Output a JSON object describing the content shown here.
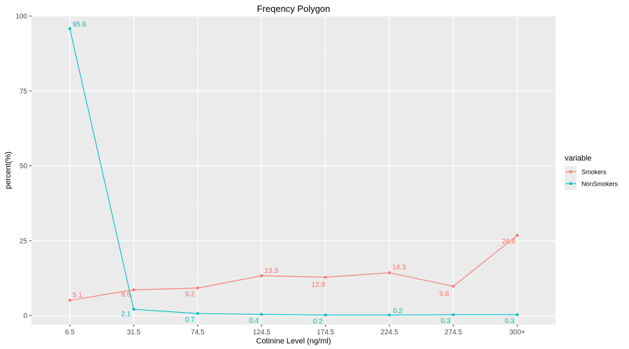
{
  "colors": {
    "panel_bg": "#EBEBEB",
    "grid_major": "#FFFFFF",
    "smokers": "#F8766D",
    "nonsmokers": "#00BFC4"
  },
  "chart_data": {
    "type": "line",
    "title": "Freqency Polygon",
    "xlabel": "Cotinine Level (ng/ml)",
    "ylabel": "percent(%)",
    "categories": [
      "6.5",
      "31.5",
      "74.5",
      "124.5",
      "174.5",
      "224.5",
      "274.5",
      "300+"
    ],
    "ylim": [
      -3,
      100
    ],
    "yticks": [
      0,
      25,
      50,
      75,
      100
    ],
    "grid": true,
    "legend_position": "right",
    "legend_title": "variable",
    "series": [
      {
        "name": "Smokers",
        "color_key": "smokers",
        "values": [
          5.1,
          8.6,
          9.2,
          13.3,
          12.8,
          14.3,
          9.8,
          26.8
        ],
        "labels": [
          "5.1",
          "8.6",
          "9.2",
          "13.3",
          "12.8",
          "14.3",
          "9.8",
          "26.8"
        ]
      },
      {
        "name": "NonSmokers",
        "color_key": "nonsmokers",
        "values": [
          95.8,
          2.1,
          0.7,
          0.4,
          0.2,
          0.2,
          0.3,
          0.3
        ],
        "labels": [
          "95.8",
          "2.1",
          "0.7",
          "0.4",
          "0.2",
          "0.2",
          "0.3",
          "0.3"
        ]
      }
    ]
  }
}
